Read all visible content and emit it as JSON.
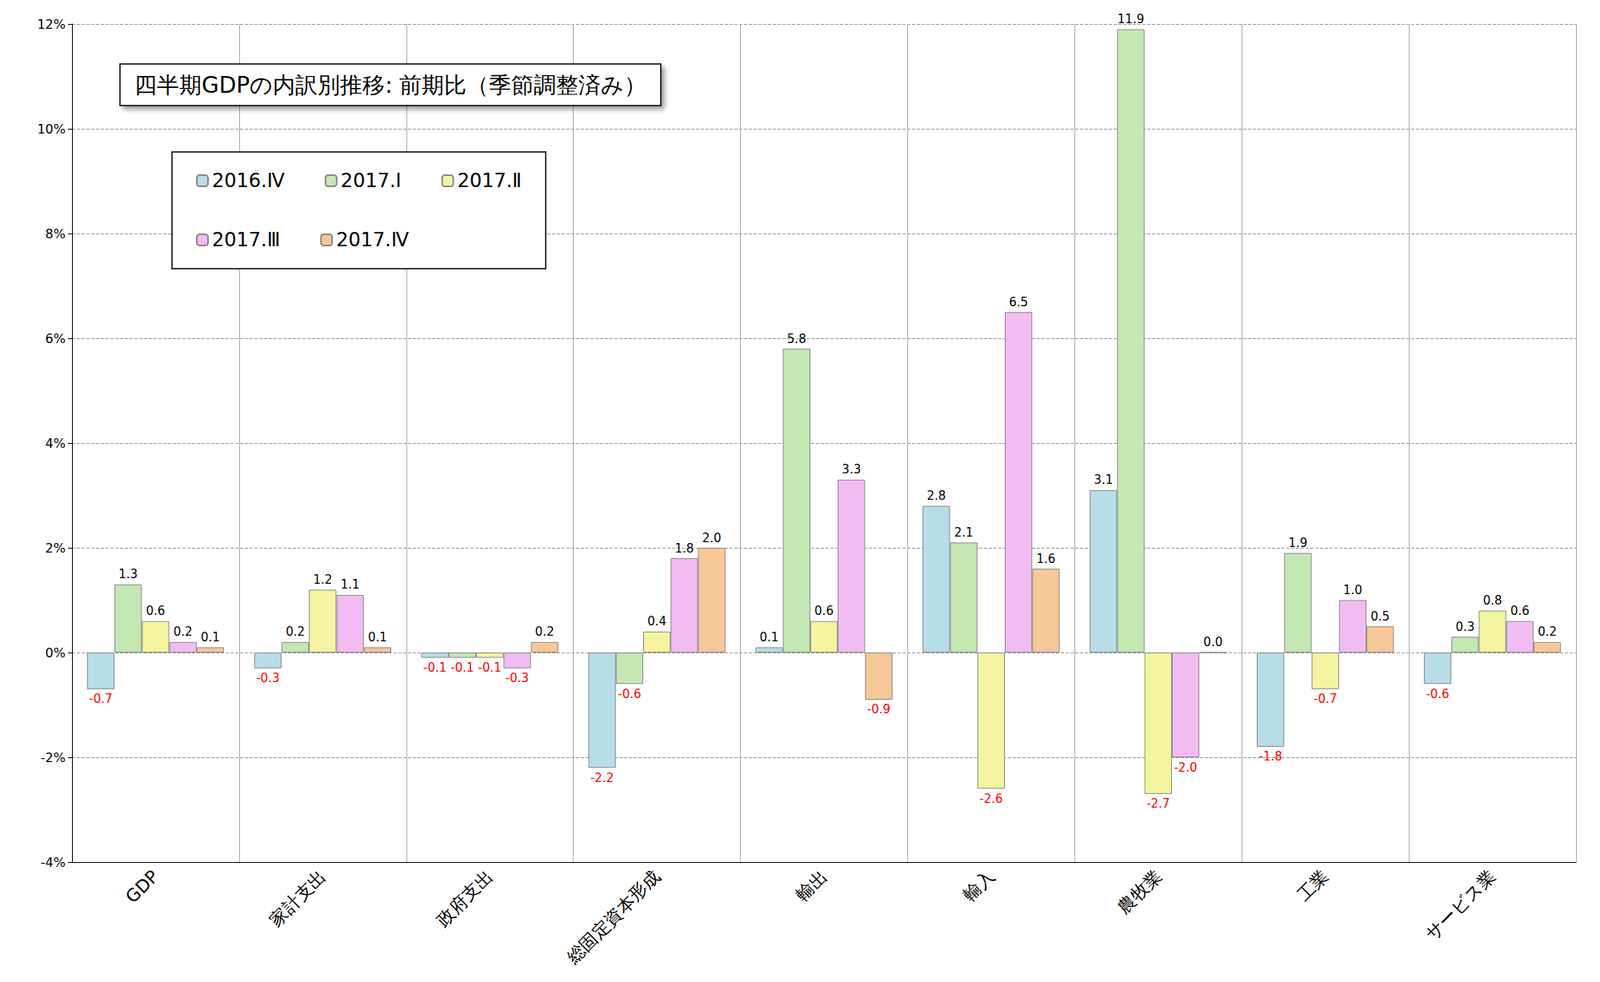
{
  "chart_data": {
    "type": "bar",
    "title": "四半期GDPの内訳別推移: 前期比（季節調整済み）",
    "categories": [
      "GDP",
      "家計支出",
      "政府支出",
      "総固定資本形成",
      "輸出",
      "輸入",
      "農牧業",
      "工業",
      "サービス業"
    ],
    "series": [
      {
        "name": "2016.Ⅳ",
        "color": "#b7dde8",
        "values": [
          -0.7,
          -0.3,
          -0.1,
          -2.2,
          0.1,
          2.8,
          3.1,
          -1.8,
          -0.6
        ],
        "value_labels": [
          "-0.7",
          "-0.3",
          "-0.1",
          "-2.2",
          "0.1",
          "2.8",
          "3.1",
          "-1.8",
          "-0.6"
        ]
      },
      {
        "name": "2017.Ⅰ",
        "color": "#c4e8b4",
        "values": [
          1.3,
          0.2,
          -0.1,
          -0.6,
          5.8,
          2.1,
          11.9,
          1.9,
          0.3
        ],
        "value_labels": [
          "1.3",
          "0.2",
          "-0.1",
          "-0.6",
          "5.8",
          "2.1",
          "11.9",
          "1.9",
          "0.3"
        ]
      },
      {
        "name": "2017.Ⅱ",
        "color": "#f4f4a0",
        "values": [
          0.6,
          1.2,
          -0.1,
          0.4,
          0.6,
          -2.6,
          -2.7,
          -0.7,
          0.8
        ],
        "value_labels": [
          "0.6",
          "1.2",
          "-0.1",
          "0.4",
          "0.6",
          "-2.6",
          "-2.7",
          "-0.7",
          "0.8"
        ]
      },
      {
        "name": "2017.Ⅲ",
        "color": "#f2bcf2",
        "values": [
          0.2,
          1.1,
          -0.3,
          1.8,
          3.3,
          6.5,
          -2.0,
          1.0,
          0.6
        ],
        "value_labels": [
          "0.2",
          "1.1",
          "-0.3",
          "1.8",
          "3.3",
          "6.5",
          "-2.0",
          "1.0",
          "0.6"
        ]
      },
      {
        "name": "2017.Ⅳ",
        "color": "#f6c898",
        "values": [
          0.1,
          0.1,
          0.2,
          2.0,
          -0.9,
          1.6,
          0.0,
          0.5,
          0.2
        ],
        "value_labels": [
          "0.1",
          "0.1",
          "0.2",
          "2.0",
          "-0.9",
          "1.6",
          "0.0",
          "0.5",
          "0.2"
        ]
      }
    ],
    "ylim": [
      -4,
      12
    ],
    "yticks": [
      {
        "value": -4,
        "label": "-4%"
      },
      {
        "value": -2,
        "label": "-2%"
      },
      {
        "value": 0,
        "label": "0%"
      },
      {
        "value": 2,
        "label": "2%"
      },
      {
        "value": 4,
        "label": "4%"
      },
      {
        "value": 6,
        "label": "6%"
      },
      {
        "value": 8,
        "label": "8%"
      },
      {
        "value": 10,
        "label": "10%"
      },
      {
        "value": 12,
        "label": "12%"
      }
    ],
    "grid": true,
    "legend": "upper left",
    "data_labels": true
  }
}
